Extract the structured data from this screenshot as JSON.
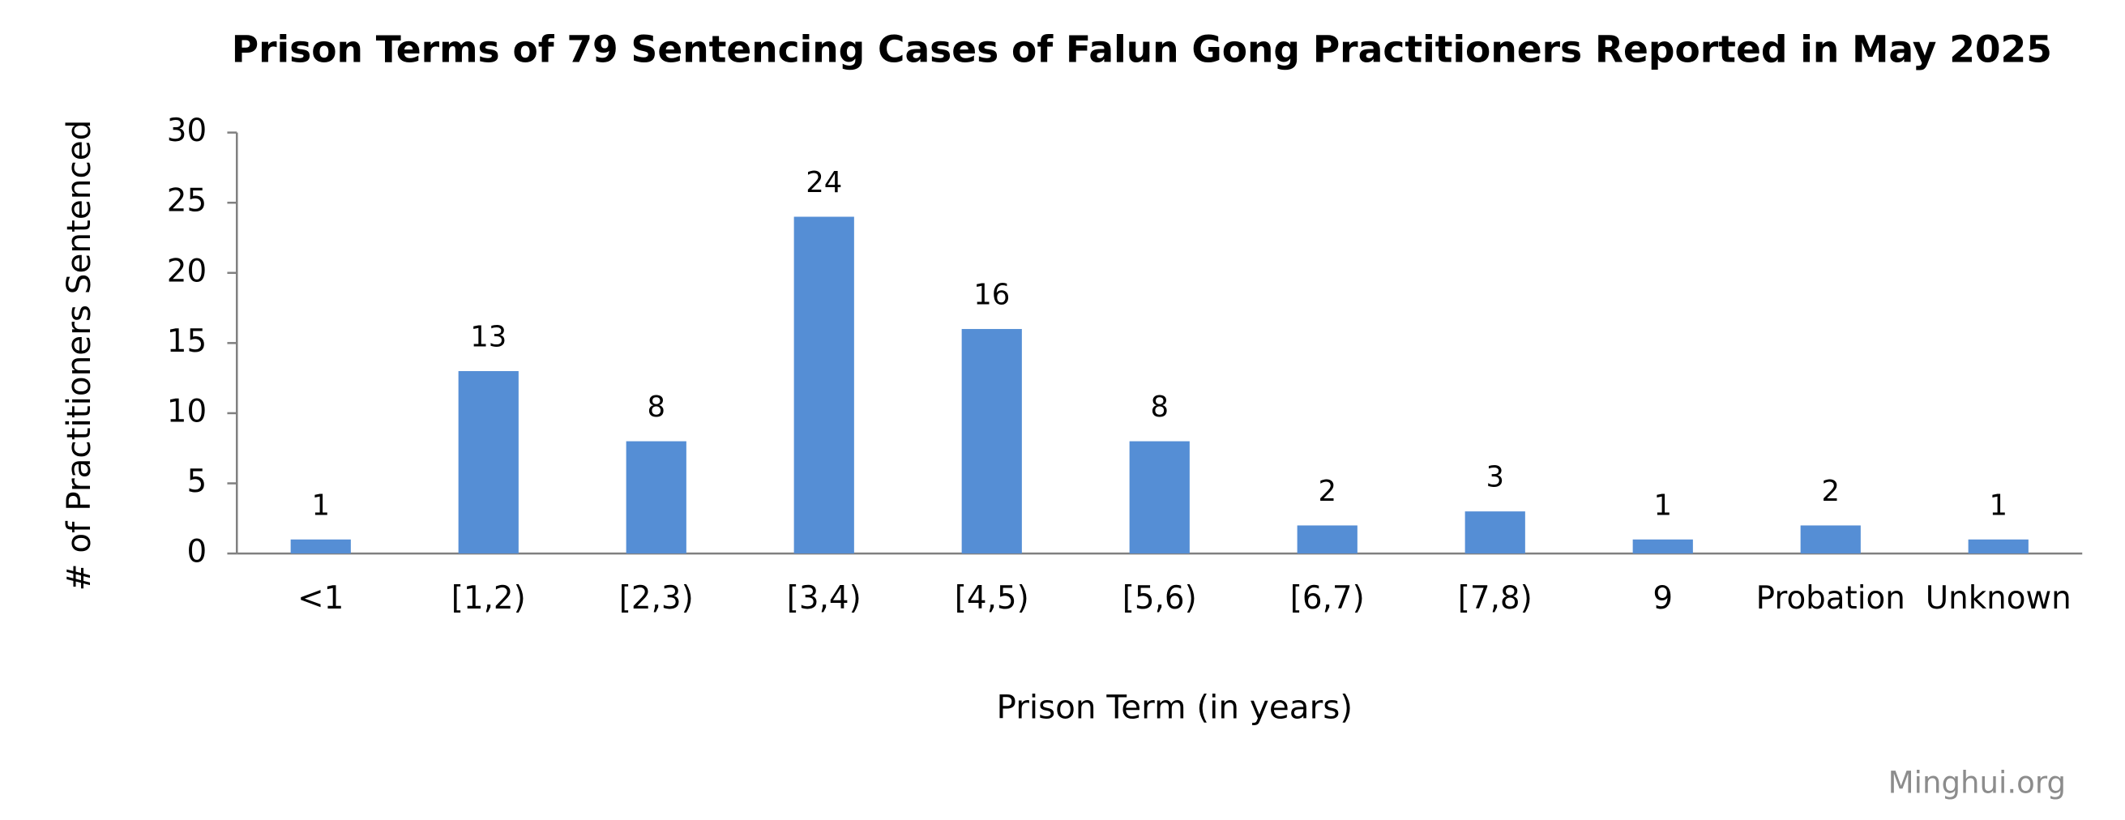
{
  "chart_data": {
    "type": "bar",
    "title": "Prison Terms of 79 Sentencing Cases of Falun Gong Practitioners Reported in May 2025",
    "x_label": "Prison Term (in years)",
    "y_label": "# of Practitioners Sentenced",
    "watermark": "Minghui.org",
    "categories": [
      "<1",
      "[1,2)",
      "[2,3)",
      "[3,4)",
      "[4,5)",
      "[5,6)",
      "[6,7)",
      "[7,8)",
      "9",
      "Probation",
      "Unknown"
    ],
    "values": [
      1,
      13,
      8,
      24,
      16,
      8,
      2,
      3,
      1,
      2,
      1
    ],
    "color": "#558ed5",
    "ylim": [
      0,
      30
    ],
    "yticks": [
      0,
      5,
      10,
      15,
      20,
      25,
      30
    ],
    "grid": false
  }
}
